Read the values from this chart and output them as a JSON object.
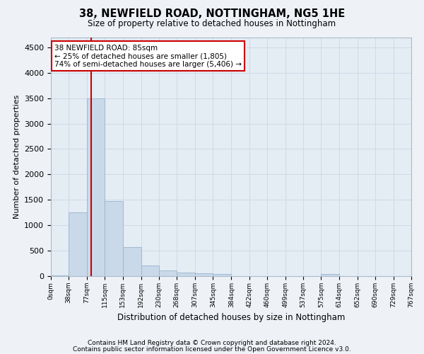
{
  "title1": "38, NEWFIELD ROAD, NOTTINGHAM, NG5 1HE",
  "title2": "Size of property relative to detached houses in Nottingham",
  "xlabel": "Distribution of detached houses by size in Nottingham",
  "ylabel": "Number of detached properties",
  "footnote1": "Contains HM Land Registry data © Crown copyright and database right 2024.",
  "footnote2": "Contains public sector information licensed under the Open Government Licence v3.0.",
  "bin_edges": [
    0,
    38,
    77,
    115,
    153,
    192,
    230,
    268,
    307,
    345,
    384,
    422,
    460,
    499,
    537,
    575,
    614,
    652,
    690,
    729,
    767
  ],
  "bar_heights": [
    20,
    1260,
    3500,
    1470,
    570,
    215,
    110,
    75,
    55,
    40,
    5,
    5,
    0,
    0,
    0,
    35,
    0,
    0,
    0,
    0
  ],
  "bar_color": "#c9d9ea",
  "bar_edge_color": "#9ab4cc",
  "grid_color": "#d0dae6",
  "property_line_x": 85,
  "annotation_line1": "38 NEWFIELD ROAD: 85sqm",
  "annotation_line2": "← 25% of detached houses are smaller (1,805)",
  "annotation_line3": "74% of semi-detached houses are larger (5,406) →",
  "annotation_box_color": "#ffffff",
  "annotation_box_edge": "#cc0000",
  "vline_color": "#cc0000",
  "ylim": [
    0,
    4700
  ],
  "yticks": [
    0,
    500,
    1000,
    1500,
    2000,
    2500,
    3000,
    3500,
    4000,
    4500
  ],
  "background_color": "#eef2f7",
  "plot_background": "#e4ecf4",
  "fig_width": 6.0,
  "fig_height": 5.0,
  "title1_fontsize": 10.5,
  "title2_fontsize": 8.5,
  "ylabel_fontsize": 8,
  "xlabel_fontsize": 8.5,
  "ytick_fontsize": 8,
  "xtick_fontsize": 6.5,
  "annotation_fontsize": 7.5,
  "footnote_fontsize": 6.5
}
